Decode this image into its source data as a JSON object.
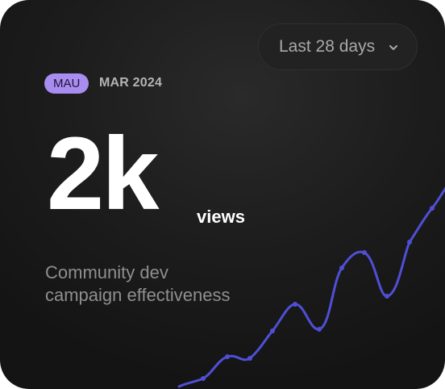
{
  "range_selector": {
    "label": "Last 28 days",
    "icon": "chevron-down-icon"
  },
  "metric": {
    "badge": "MAU",
    "period": "MAR 2024",
    "value": "2k",
    "unit": "views",
    "description_line1": "Community dev",
    "description_line2": "campaign effectiveness"
  },
  "colors": {
    "badge_bg": "#a98cf0",
    "line": "#4f4fd6"
  }
}
